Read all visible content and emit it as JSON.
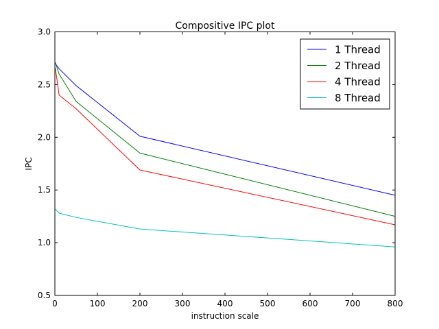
{
  "chart_data": {
    "type": "line",
    "title": "Compositive IPC plot",
    "xlabel": "instruction scale",
    "ylabel": "IPC",
    "xlim": [
      0,
      800
    ],
    "ylim": [
      0.5,
      3.0
    ],
    "xticks": [
      0,
      100,
      200,
      300,
      400,
      500,
      600,
      700,
      800
    ],
    "yticks": [
      0.5,
      1.0,
      1.5,
      2.0,
      2.5,
      3.0
    ],
    "xtick_labels": [
      "0",
      "100",
      "200",
      "300",
      "400",
      "500",
      "600",
      "700",
      "800"
    ],
    "ytick_labels": [
      "0.5",
      "1.0",
      "1.5",
      "2.0",
      "2.5",
      "3.0"
    ],
    "grid": false,
    "legend_position": "top-right",
    "series": [
      {
        "name": "1 Thread",
        "color": "#0000ff",
        "x": [
          1,
          10,
          50,
          200,
          800
        ],
        "y": [
          2.7,
          2.65,
          2.49,
          2.01,
          1.45
        ]
      },
      {
        "name": "2 Thread",
        "color": "#008000",
        "x": [
          1,
          10,
          50,
          200,
          800
        ],
        "y": [
          2.71,
          2.6,
          2.34,
          1.85,
          1.25
        ]
      },
      {
        "name": "4 Thread",
        "color": "#ff0000",
        "x": [
          1,
          10,
          50,
          200,
          800
        ],
        "y": [
          2.66,
          2.4,
          2.27,
          1.69,
          1.17
        ]
      },
      {
        "name": "8 Thread",
        "color": "#00bfbf",
        "x": [
          1,
          10,
          50,
          200,
          800
        ],
        "y": [
          1.32,
          1.28,
          1.24,
          1.13,
          0.96
        ]
      }
    ]
  }
}
